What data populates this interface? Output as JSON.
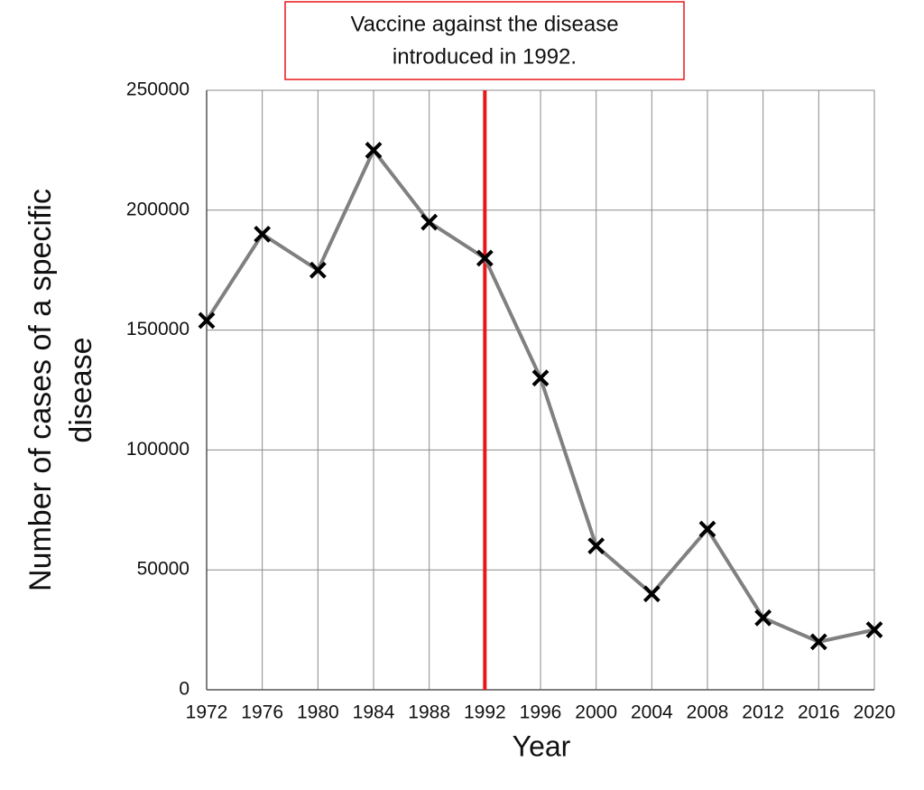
{
  "chart_data": {
    "type": "line",
    "x": [
      1972,
      1976,
      1980,
      1984,
      1988,
      1992,
      1996,
      2000,
      2004,
      2008,
      2012,
      2016,
      2020
    ],
    "series": [
      {
        "color": "#808080",
        "marker_color": "#000000",
        "values": [
          154000,
          190000,
          175000,
          225000,
          195000,
          180000,
          130000,
          60000,
          40000,
          67000,
          30000,
          20000,
          25000
        ]
      }
    ],
    "xlim": [
      1972,
      2020
    ],
    "xticks": [
      1972,
      1976,
      1980,
      1984,
      1988,
      1992,
      1996,
      2000,
      2004,
      2008,
      2012,
      2016,
      2020
    ],
    "ylim": [
      0,
      250000
    ],
    "yticks": [
      0,
      50000,
      100000,
      150000,
      200000,
      250000
    ],
    "grid": true,
    "xlabel": "Year",
    "ylabel_lines": [
      "Number of cases of a specific",
      "disease"
    ],
    "annotation": {
      "x": 1992,
      "color": "#e8171b",
      "text_lines": [
        "Vaccine against the disease",
        "introduced in 1992."
      ]
    }
  }
}
